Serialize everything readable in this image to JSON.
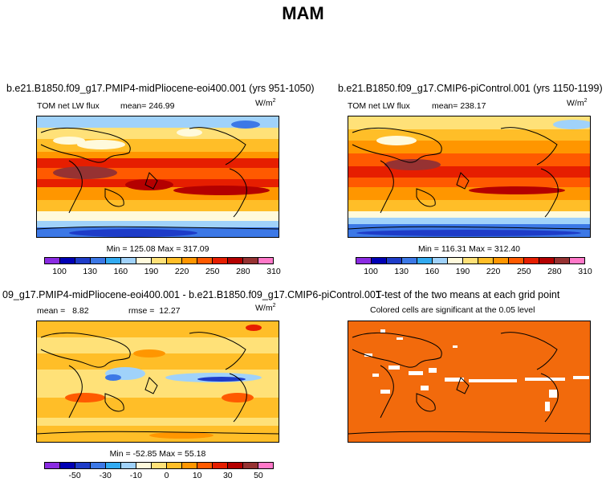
{
  "figure_title": "MAM",
  "panels": {
    "top_left": {
      "title": "b.e21.B1850.f09_g17.PMIP4-midPliocene-eoi400.001 (yrs 951-1050)",
      "variable": "TOM net LW flux",
      "mean_label": "mean=",
      "mean_value": "246.99",
      "units": "W/m",
      "units_exp": "2",
      "minmax": "Min = 125.08 Max = 317.09"
    },
    "top_right": {
      "title": "b.e21.B1850.f09_g17.CMIP6-piControl.001 (yrs 1150-1199)",
      "variable": "TOM net LW flux",
      "mean_label": "mean=",
      "mean_value": "238.17",
      "units": "W/m",
      "units_exp": "2",
      "minmax": "Min = 116.31 Max = 312.40"
    },
    "bottom_left": {
      "title": "09_g17.PMIP4-midPliocene-eoi400.001 - b.e21.B1850.f09_g17.CMIP6-piControl.001",
      "mean_label": "mean =",
      "mean_value": "8.82",
      "rmse_label": "rmse =",
      "rmse_value": "12.27",
      "units": "W/m",
      "units_exp": "2",
      "minmax": "Min = -52.85 Max = 55.18"
    },
    "bottom_right": {
      "title": "T-test of the two means at each grid point",
      "subtitle": "Colored cells are significant at the 0.05 level"
    }
  },
  "colorbars": {
    "absolute": {
      "colors": [
        "#8a2be2",
        "#0000b4",
        "#1e3cc8",
        "#3c78e6",
        "#32aaf0",
        "#a0d2fa",
        "#fffadc",
        "#ffe178",
        "#ffbe28",
        "#ff9600",
        "#ff5a00",
        "#e61e00",
        "#b40000",
        "#963232",
        "#ff78c8"
      ],
      "ticks": [
        "100",
        "130",
        "160",
        "190",
        "220",
        "250",
        "280",
        "310"
      ]
    },
    "difference": {
      "colors": [
        "#8a2be2",
        "#0000b4",
        "#1e3cc8",
        "#3c78e6",
        "#32aaf0",
        "#a0d2fa",
        "#fffadc",
        "#ffe178",
        "#ffbe28",
        "#ff9600",
        "#ff5a00",
        "#e61e00",
        "#b40000",
        "#963232",
        "#ff78c8"
      ],
      "ticks": [
        "-50",
        "-30",
        "-10",
        "0",
        "10",
        "30",
        "50"
      ]
    }
  },
  "colors": {
    "ttest_fill": "#f26a0c"
  }
}
